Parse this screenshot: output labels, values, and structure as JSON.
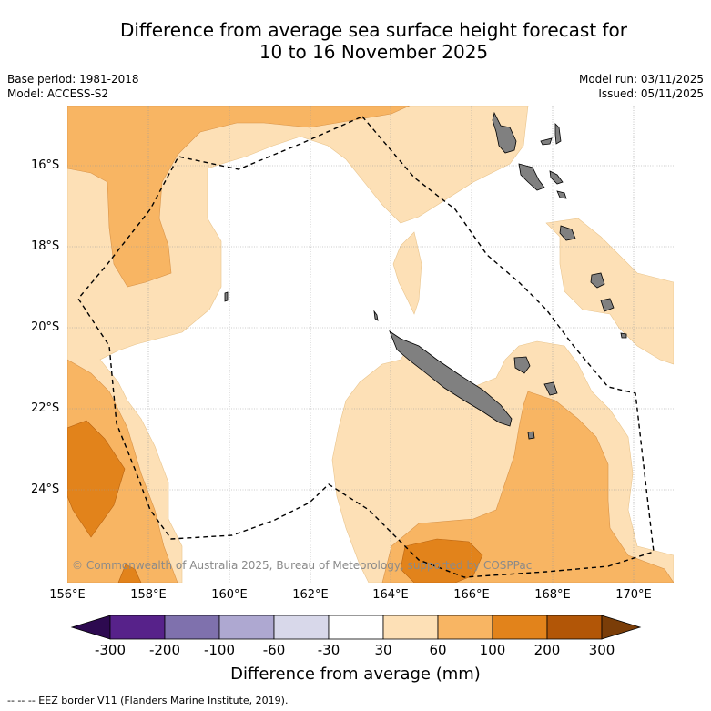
{
  "title": {
    "line1": "Difference from average sea surface height forecast for",
    "line2": "10 to 16 November 2025"
  },
  "meta": {
    "base_period": "Base period: 1981-2018",
    "model": "Model: ACCESS-S2",
    "model_run": "Model run: 03/11/2025",
    "issued": "Issued: 05/11/2025"
  },
  "map": {
    "lat_labels": [
      "16°S",
      "18°S",
      "20°S",
      "22°S",
      "24°S"
    ],
    "lon_labels": [
      "156°E",
      "158°E",
      "160°E",
      "162°E",
      "164°E",
      "166°E",
      "168°E",
      "170°E"
    ],
    "copyright": "© Commonwealth of Australia 2025, Bureau of Meteorology, supported by COSPPac",
    "land_color": "#808080"
  },
  "colorbar": {
    "ticks": [
      "-300",
      "-200",
      "-100",
      "-60",
      "-30",
      "30",
      "60",
      "100",
      "200",
      "300"
    ],
    "colors": [
      "#2d0a50",
      "#57228a",
      "#7f71ad",
      "#aea8d1",
      "#d8d8ea",
      "#ffffff",
      "#fde0b6",
      "#f8b563",
      "#e2831b",
      "#b25607",
      "#7a3d08"
    ],
    "label": "Difference from average (mm)"
  },
  "legend_footnote": "--  --  -- EEZ border V11 (Flanders Marine Institute, 2019)."
}
